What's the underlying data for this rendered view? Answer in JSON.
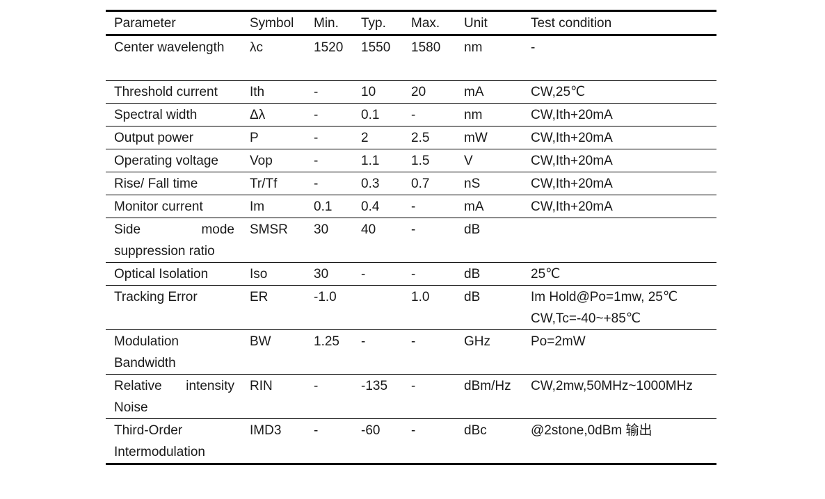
{
  "columns": [
    "Parameter",
    "Symbol",
    "Min.",
    "Typ.",
    "Max.",
    "Unit",
    "Test condition"
  ],
  "rows": [
    [
      "Center wavelength",
      "λc",
      "1520",
      "1550",
      "1580",
      "nm",
      "-"
    ],
    [
      "Threshold current",
      "Ith",
      "-",
      "10",
      "20",
      "mA",
      "CW,25℃"
    ],
    [
      "Spectral width",
      "Δλ",
      "-",
      "0.1",
      "-",
      "nm",
      "CW,Ith+20mA"
    ],
    [
      "Output power",
      "P",
      "-",
      "2",
      "2.5",
      "mW",
      "CW,Ith+20mA"
    ],
    [
      "Operating voltage",
      "Vop",
      "-",
      "1.1",
      "1.5",
      "V",
      "CW,Ith+20mA"
    ],
    [
      "Rise/ Fall time",
      "Tr/Tf",
      "-",
      "0.3",
      "0.7",
      "nS",
      "CW,Ith+20mA"
    ],
    [
      "Monitor current",
      "Im",
      "0.1",
      "0.4",
      "-",
      "mA",
      "CW,Ith+20mA"
    ],
    [
      "Side mode suppression ratio",
      "SMSR",
      "30",
      "40",
      "-",
      "dB",
      ""
    ],
    [
      "Optical Isolation",
      "Iso",
      "30",
      "-",
      "-",
      "dB",
      "25℃"
    ],
    [
      "Tracking Error",
      "ER",
      "-1.0",
      "",
      "1.0",
      "dB",
      "Im Hold@Po=1mw, 25℃\nCW,Tc=-40~+85℃"
    ],
    [
      "Modulation Bandwidth",
      "BW",
      "1.25",
      "-",
      "-",
      "GHz",
      "Po=2mW"
    ],
    [
      "Relative intensity Noise",
      "RIN",
      "-",
      "-135",
      "-",
      "dBm/Hz",
      "CW,2mw,50MHz~1000MHz"
    ],
    [
      "Third-Order Intermodulation",
      "IMD3",
      "-",
      "-60",
      "-",
      "dBc",
      "@2stone,0dBm 输出"
    ]
  ],
  "two_line_rows": [
    0,
    7,
    9,
    10,
    11,
    12
  ]
}
